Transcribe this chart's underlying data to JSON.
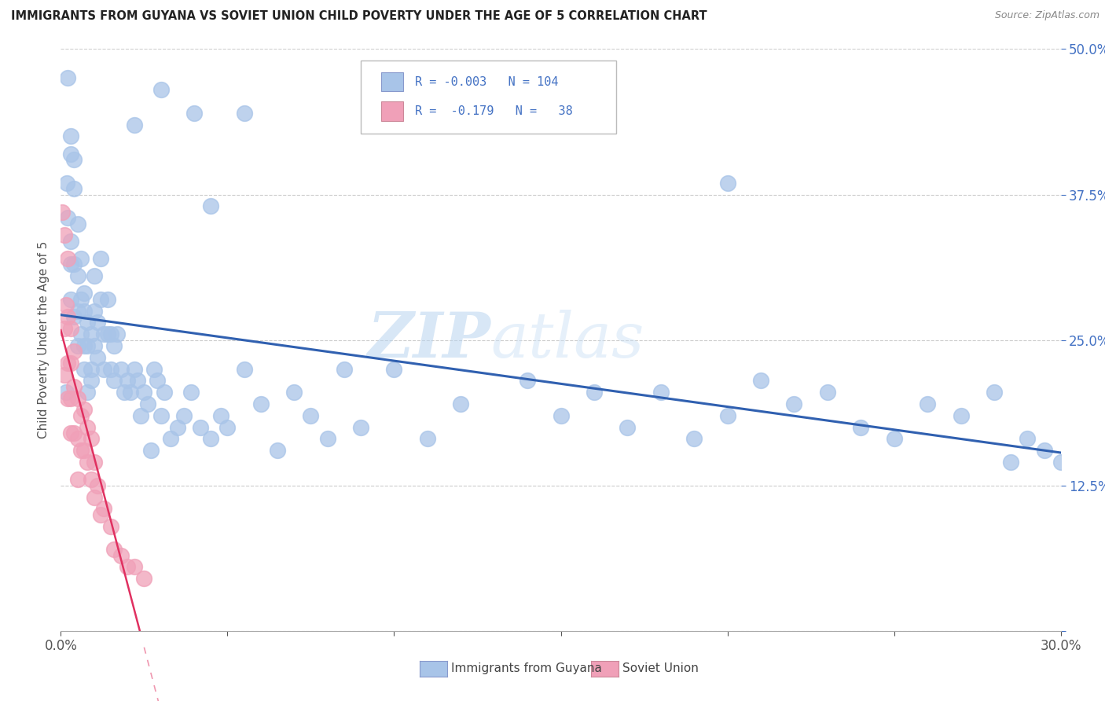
{
  "title": "IMMIGRANTS FROM GUYANA VS SOVIET UNION CHILD POVERTY UNDER THE AGE OF 5 CORRELATION CHART",
  "source": "Source: ZipAtlas.com",
  "xlabel_guyana": "Immigrants from Guyana",
  "xlabel_soviet": "Soviet Union",
  "ylabel": "Child Poverty Under the Age of 5",
  "xlim": [
    0.0,
    0.3
  ],
  "ylim": [
    0.0,
    0.5
  ],
  "xticks": [
    0.0,
    0.05,
    0.1,
    0.15,
    0.2,
    0.25,
    0.3
  ],
  "xticklabels": [
    "0.0%",
    "",
    "",
    "",
    "",
    "",
    "30.0%"
  ],
  "yticks": [
    0.0,
    0.125,
    0.25,
    0.375,
    0.5
  ],
  "yticklabels": [
    "",
    "12.5%",
    "25.0%",
    "37.5%",
    "50.0%"
  ],
  "guyana_color": "#a8c4e8",
  "soviet_color": "#f0a0b8",
  "guyana_line_color": "#3060b0",
  "soviet_line_color": "#e03060",
  "background_color": "#ffffff",
  "grid_color": "#cccccc",
  "watermark_zip": "ZIP",
  "watermark_atlas": "atlas",
  "title_color": "#222222",
  "source_color": "#888888",
  "ytick_color": "#4472c4",
  "xtick_color": "#555555",
  "ylabel_color": "#555555",
  "legend_text_color": "#4472c4",
  "guyana_x": [
    0.0015,
    0.0018,
    0.002,
    0.003,
    0.003,
    0.003,
    0.004,
    0.004,
    0.005,
    0.005,
    0.005,
    0.006,
    0.006,
    0.007,
    0.007,
    0.007,
    0.008,
    0.008,
    0.008,
    0.009,
    0.009,
    0.009,
    0.01,
    0.01,
    0.01,
    0.011,
    0.011,
    0.012,
    0.012,
    0.013,
    0.013,
    0.014,
    0.014,
    0.015,
    0.015,
    0.016,
    0.016,
    0.017,
    0.018,
    0.019,
    0.02,
    0.021,
    0.022,
    0.023,
    0.024,
    0.025,
    0.026,
    0.027,
    0.028,
    0.029,
    0.03,
    0.031,
    0.033,
    0.035,
    0.037,
    0.039,
    0.042,
    0.045,
    0.048,
    0.05,
    0.055,
    0.06,
    0.065,
    0.07,
    0.075,
    0.08,
    0.085,
    0.09,
    0.1,
    0.11,
    0.12,
    0.14,
    0.15,
    0.16,
    0.17,
    0.18,
    0.19,
    0.2,
    0.21,
    0.22,
    0.23,
    0.24,
    0.25,
    0.26,
    0.27,
    0.28,
    0.285,
    0.29,
    0.295,
    0.3,
    0.022,
    0.055,
    0.002,
    0.03,
    0.04,
    0.045,
    0.003,
    0.004,
    0.2,
    0.003,
    0.004,
    0.005,
    0.006,
    0.007
  ],
  "guyana_y": [
    0.205,
    0.385,
    0.355,
    0.335,
    0.315,
    0.285,
    0.315,
    0.27,
    0.305,
    0.275,
    0.245,
    0.285,
    0.255,
    0.275,
    0.245,
    0.225,
    0.265,
    0.245,
    0.205,
    0.255,
    0.225,
    0.215,
    0.305,
    0.275,
    0.245,
    0.265,
    0.235,
    0.32,
    0.285,
    0.255,
    0.225,
    0.285,
    0.255,
    0.255,
    0.225,
    0.245,
    0.215,
    0.255,
    0.225,
    0.205,
    0.215,
    0.205,
    0.225,
    0.215,
    0.185,
    0.205,
    0.195,
    0.155,
    0.225,
    0.215,
    0.185,
    0.205,
    0.165,
    0.175,
    0.185,
    0.205,
    0.175,
    0.165,
    0.185,
    0.175,
    0.225,
    0.195,
    0.155,
    0.205,
    0.185,
    0.165,
    0.225,
    0.175,
    0.225,
    0.165,
    0.195,
    0.215,
    0.185,
    0.205,
    0.175,
    0.205,
    0.165,
    0.185,
    0.215,
    0.195,
    0.205,
    0.175,
    0.165,
    0.195,
    0.185,
    0.205,
    0.145,
    0.165,
    0.155,
    0.145,
    0.435,
    0.445,
    0.475,
    0.465,
    0.445,
    0.365,
    0.425,
    0.405,
    0.385,
    0.41,
    0.38,
    0.35,
    0.32,
    0.29
  ],
  "soviet_x": [
    0.0005,
    0.001,
    0.001,
    0.001,
    0.0015,
    0.002,
    0.002,
    0.002,
    0.002,
    0.003,
    0.003,
    0.003,
    0.003,
    0.004,
    0.004,
    0.004,
    0.005,
    0.005,
    0.005,
    0.006,
    0.006,
    0.007,
    0.007,
    0.008,
    0.008,
    0.009,
    0.009,
    0.01,
    0.01,
    0.011,
    0.012,
    0.013,
    0.015,
    0.016,
    0.018,
    0.02,
    0.022,
    0.025
  ],
  "soviet_y": [
    0.36,
    0.34,
    0.26,
    0.22,
    0.28,
    0.32,
    0.27,
    0.23,
    0.2,
    0.26,
    0.23,
    0.2,
    0.17,
    0.24,
    0.21,
    0.17,
    0.2,
    0.165,
    0.13,
    0.185,
    0.155,
    0.19,
    0.155,
    0.175,
    0.145,
    0.165,
    0.13,
    0.145,
    0.115,
    0.125,
    0.1,
    0.105,
    0.09,
    0.07,
    0.065,
    0.055,
    0.055,
    0.045
  ]
}
